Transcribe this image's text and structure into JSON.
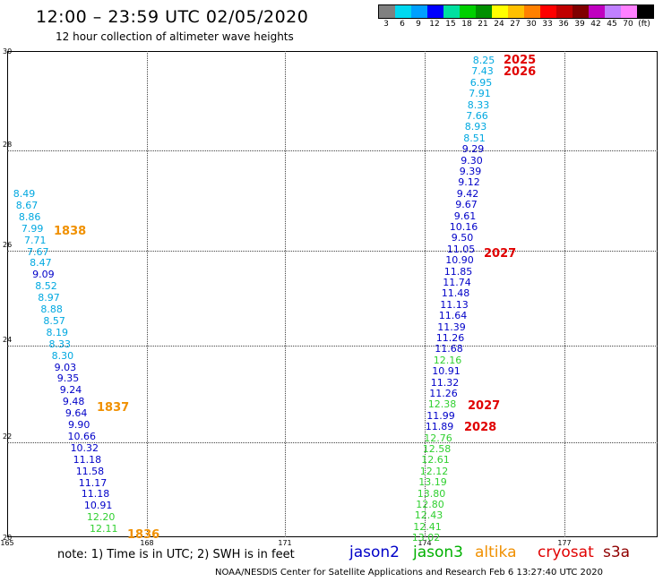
{
  "header": {
    "title": "12:00 – 23:59 UTC 02/05/2020",
    "subtitle": "12 hour collection of altimeter wave heights"
  },
  "colorbar": {
    "colors": [
      "#808080",
      "#00d8f0",
      "#00a0ff",
      "#0000ff",
      "#00e0a0",
      "#00d000",
      "#009000",
      "#ffff00",
      "#ffc000",
      "#ff8000",
      "#ff0000",
      "#c00000",
      "#800000",
      "#c000c0",
      "#c080ff",
      "#ff80ff",
      "#000000"
    ],
    "labels": [
      "3",
      "6",
      "9",
      "12",
      "15",
      "18",
      "21",
      "24",
      "27",
      "30",
      "33",
      "36",
      "39",
      "42",
      "45",
      "70",
      "(ft)"
    ]
  },
  "axes": {
    "y_ticks": [
      "30",
      "28",
      "26",
      "24",
      "22",
      "20"
    ],
    "x_ticks": [
      "165",
      "168",
      "171",
      "174",
      "177"
    ]
  },
  "colors": {
    "cyan": "#00a8e0",
    "blue": "#0000c8",
    "green": "#30d030",
    "orange": "#f09000",
    "red": "#e00000"
  },
  "left_track": [
    {
      "v": "8.49",
      "c": "cyan"
    },
    {
      "v": "8.67",
      "c": "cyan"
    },
    {
      "v": "8.86",
      "c": "cyan"
    },
    {
      "v": "7.99",
      "c": "cyan"
    },
    {
      "v": "7.71",
      "c": "cyan"
    },
    {
      "v": "7.67",
      "c": "cyan"
    },
    {
      "v": "8.47",
      "c": "cyan"
    },
    {
      "v": "9.09",
      "c": "blue"
    },
    {
      "v": "8.52",
      "c": "cyan"
    },
    {
      "v": "8.97",
      "c": "cyan"
    },
    {
      "v": "8.88",
      "c": "cyan"
    },
    {
      "v": "8.57",
      "c": "cyan"
    },
    {
      "v": "8.19",
      "c": "cyan"
    },
    {
      "v": "8.33",
      "c": "cyan"
    },
    {
      "v": "8.30",
      "c": "cyan"
    },
    {
      "v": "9.03",
      "c": "blue"
    },
    {
      "v": "9.35",
      "c": "blue"
    },
    {
      "v": "9.24",
      "c": "blue"
    },
    {
      "v": "9.48",
      "c": "blue"
    },
    {
      "v": "9.64",
      "c": "blue"
    },
    {
      "v": "9.90",
      "c": "blue"
    },
    {
      "v": "10.66",
      "c": "blue"
    },
    {
      "v": "10.32",
      "c": "blue"
    },
    {
      "v": "11.18",
      "c": "blue"
    },
    {
      "v": "11.58",
      "c": "blue"
    },
    {
      "v": "11.17",
      "c": "blue"
    },
    {
      "v": "11.18",
      "c": "blue"
    },
    {
      "v": "10.91",
      "c": "blue"
    },
    {
      "v": "12.20",
      "c": "green"
    },
    {
      "v": "12.11",
      "c": "green"
    }
  ],
  "right_track": [
    {
      "v": "8.25",
      "c": "cyan"
    },
    {
      "v": "7.43",
      "c": "cyan"
    },
    {
      "v": "6.95",
      "c": "cyan"
    },
    {
      "v": "7.91",
      "c": "cyan"
    },
    {
      "v": "8.33",
      "c": "cyan"
    },
    {
      "v": "7.66",
      "c": "cyan"
    },
    {
      "v": "8.93",
      "c": "cyan"
    },
    {
      "v": "8.51",
      "c": "cyan"
    },
    {
      "v": "9.29",
      "c": "blue"
    },
    {
      "v": "9.30",
      "c": "blue"
    },
    {
      "v": "9.39",
      "c": "blue"
    },
    {
      "v": "9.12",
      "c": "blue"
    },
    {
      "v": "9.42",
      "c": "blue"
    },
    {
      "v": "9.67",
      "c": "blue"
    },
    {
      "v": "9.61",
      "c": "blue"
    },
    {
      "v": "10.16",
      "c": "blue"
    },
    {
      "v": "9.50",
      "c": "blue"
    },
    {
      "v": "11.05",
      "c": "blue"
    },
    {
      "v": "10.90",
      "c": "blue"
    },
    {
      "v": "11.85",
      "c": "blue"
    },
    {
      "v": "11.74",
      "c": "blue"
    },
    {
      "v": "11.48",
      "c": "blue"
    },
    {
      "v": "11.13",
      "c": "blue"
    },
    {
      "v": "11.64",
      "c": "blue"
    },
    {
      "v": "11.39",
      "c": "blue"
    },
    {
      "v": "11.26",
      "c": "blue"
    },
    {
      "v": "11.68",
      "c": "blue"
    },
    {
      "v": "12.16",
      "c": "green"
    },
    {
      "v": "10.91",
      "c": "blue"
    },
    {
      "v": "11.32",
      "c": "blue"
    },
    {
      "v": "11.26",
      "c": "blue"
    },
    {
      "v": "12.38",
      "c": "green"
    },
    {
      "v": "11.99",
      "c": "blue"
    },
    {
      "v": "11.89",
      "c": "blue"
    },
    {
      "v": "12.76",
      "c": "green"
    },
    {
      "v": "12.58",
      "c": "green"
    },
    {
      "v": "12.61",
      "c": "green"
    },
    {
      "v": "12.12",
      "c": "green"
    },
    {
      "v": "13.19",
      "c": "green"
    },
    {
      "v": "13.80",
      "c": "green"
    },
    {
      "v": "12.80",
      "c": "green"
    },
    {
      "v": "12.43",
      "c": "green"
    },
    {
      "v": "12.41",
      "c": "green"
    },
    {
      "v": "13.02",
      "c": "green"
    }
  ],
  "time_markers": [
    {
      "label": "1838",
      "c": "orange"
    },
    {
      "label": "1837",
      "c": "orange"
    },
    {
      "label": "1836",
      "c": "orange"
    },
    {
      "label": "2025",
      "c": "red"
    },
    {
      "label": "2026",
      "c": "red"
    },
    {
      "label": "2027",
      "c": "red"
    },
    {
      "label": "2027",
      "c": "red"
    },
    {
      "label": "2028",
      "c": "red"
    }
  ],
  "footer": {
    "note": "note:  1) Time is in UTC;  2) SWH is in feet",
    "satellites": [
      {
        "name": "jason2",
        "color": "#0000c8"
      },
      {
        "name": "jason3",
        "color": "#00b000"
      },
      {
        "name": "altika",
        "color": "#f09000"
      },
      {
        "name": "cryosat",
        "color": "#e00000"
      },
      {
        "name": "s3a",
        "color": "#900000"
      }
    ],
    "credit": "NOAA/NESDIS Center for Satellite Applications and Research    Feb  6 13:27:40 UTC 2020"
  }
}
